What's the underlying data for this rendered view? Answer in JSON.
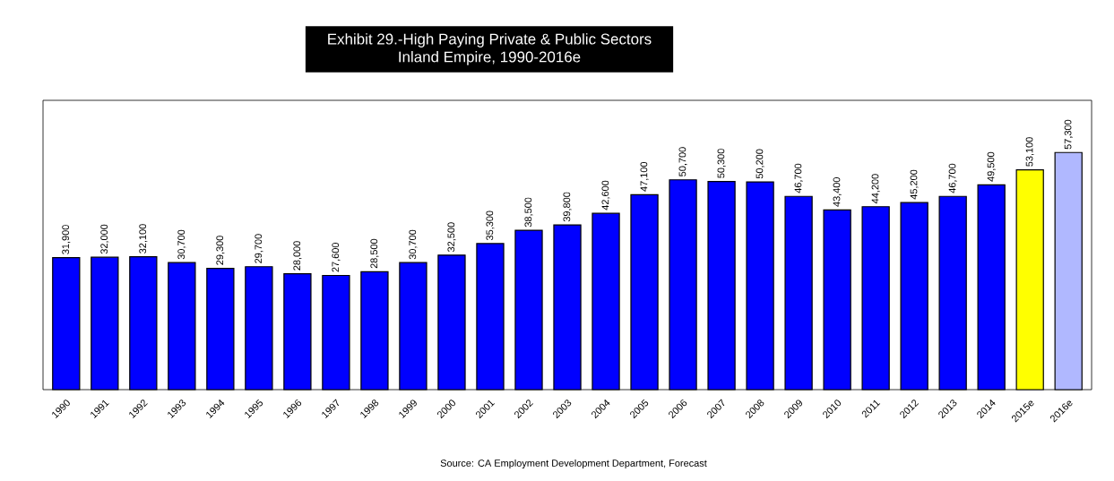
{
  "chart_data": {
    "type": "bar",
    "title": "Exhibit 29.-High Paying Private & Public Sectors",
    "subtitle": "Inland Empire, 1990-2016e",
    "categories": [
      "1990",
      "1991",
      "1992",
      "1993",
      "1994",
      "1995",
      "1996",
      "1997",
      "1998",
      "1999",
      "2000",
      "2001",
      "2002",
      "2003",
      "2004",
      "2005",
      "2006",
      "2007",
      "2008",
      "2009",
      "2010",
      "2011",
      "2012",
      "2013",
      "2014",
      "2015e",
      "2016e"
    ],
    "values": [
      31900,
      32000,
      32100,
      30700,
      29300,
      29700,
      28000,
      27600,
      28500,
      30700,
      32500,
      35300,
      38500,
      39800,
      42600,
      47100,
      50700,
      50300,
      50200,
      46700,
      43400,
      44200,
      45200,
      46700,
      49500,
      53100,
      57300
    ],
    "value_labels": [
      "31,900",
      "32,000",
      "32,100",
      "30,700",
      "29,300",
      "29,700",
      "28,000",
      "27,600",
      "28,500",
      "30,700",
      "32,500",
      "35,300",
      "38,500",
      "39,800",
      "42,600",
      "47,100",
      "50,700",
      "50,300",
      "50,200",
      "46,700",
      "43,400",
      "44,200",
      "45,200",
      "46,700",
      "49,500",
      "53,100",
      "57,300"
    ],
    "colors": [
      "#0000ff",
      "#0000ff",
      "#0000ff",
      "#0000ff",
      "#0000ff",
      "#0000ff",
      "#0000ff",
      "#0000ff",
      "#0000ff",
      "#0000ff",
      "#0000ff",
      "#0000ff",
      "#0000ff",
      "#0000ff",
      "#0000ff",
      "#0000ff",
      "#0000ff",
      "#0000ff",
      "#0000ff",
      "#0000ff",
      "#0000ff",
      "#0000ff",
      "#0000ff",
      "#0000ff",
      "#0000ff",
      "#ffff00",
      "#b0b8ff"
    ],
    "annotations": [
      "Source: CA Employment Development Department, Forecast"
    ]
  }
}
